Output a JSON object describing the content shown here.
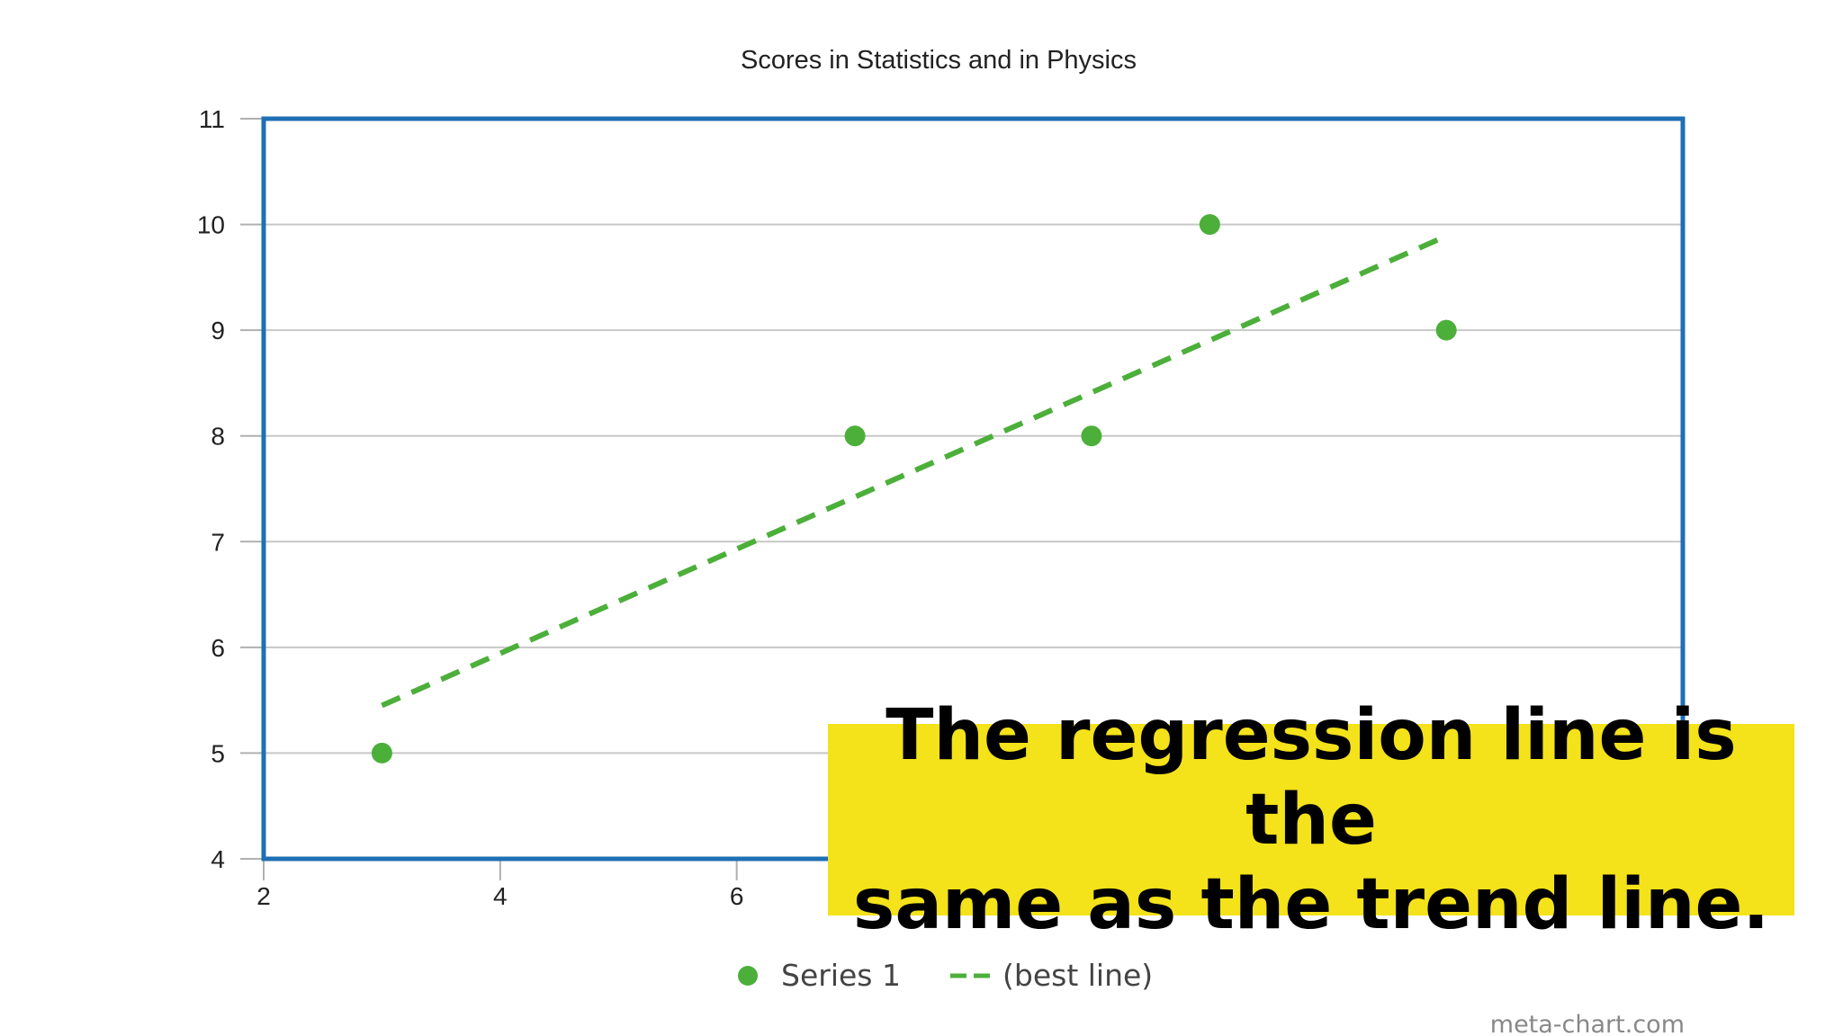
{
  "chart_data": {
    "type": "scatter",
    "title": "Scores in Statistics and in Physics",
    "xlabel": "",
    "ylabel": "",
    "xlim": [
      2,
      14
    ],
    "ylim": [
      4,
      11
    ],
    "x_ticks": [
      "2",
      "4",
      "6"
    ],
    "y_ticks": [
      "4",
      "5",
      "6",
      "7",
      "8",
      "9",
      "10",
      "11"
    ],
    "grid": true,
    "legend_position": "bottom",
    "series": [
      {
        "name": "Series 1",
        "color": "#4caf3a",
        "x": [
          3,
          7,
          9,
          10,
          12
        ],
        "y": [
          5,
          8,
          8,
          10,
          9
        ]
      }
    ],
    "trend_line": {
      "name": "(best line)",
      "color": "#4caf3a",
      "style": "dashed",
      "x": [
        3,
        12
      ],
      "y": [
        5.45,
        9.89
      ]
    }
  },
  "callout": {
    "text": "The regression line is the\n same as the trend line.",
    "color": "#f4e21a"
  },
  "watermark": "meta-chart.com",
  "colors": {
    "frame": "#1f6fb4",
    "grid": "#c8c8c8",
    "points": "#4caf3a"
  }
}
